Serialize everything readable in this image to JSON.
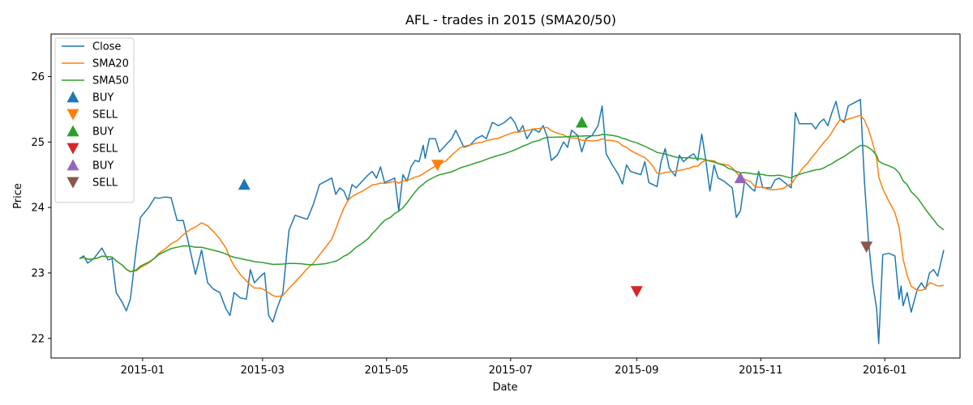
{
  "chart_data": {
    "type": "line",
    "title": "AFL - trades in 2015 (SMA20/50)",
    "xlabel": "Date",
    "ylabel": "Price",
    "xlim": [
      "2014-11-17",
      "2016-02-07"
    ],
    "ylim": [
      21.7,
      26.65
    ],
    "x_ticks": [
      {
        "date": "2015-01-01",
        "label": "2015-01"
      },
      {
        "date": "2015-03-01",
        "label": "2015-03"
      },
      {
        "date": "2015-05-01",
        "label": "2015-05"
      },
      {
        "date": "2015-07-01",
        "label": "2015-07"
      },
      {
        "date": "2015-09-01",
        "label": "2015-09"
      },
      {
        "date": "2015-11-01",
        "label": "2015-11"
      },
      {
        "date": "2016-01-01",
        "label": "2016-01"
      }
    ],
    "y_ticks": [
      22,
      23,
      24,
      25,
      26
    ],
    "grid": false,
    "legend_position": "top-left",
    "series": [
      {
        "name": "Close",
        "color": "#1f77b4",
        "points": [
          [
            "2014-12-01",
            23.22
          ],
          [
            "2014-12-03",
            23.26
          ],
          [
            "2014-12-05",
            23.15
          ],
          [
            "2014-12-08",
            23.22
          ],
          [
            "2014-12-10",
            23.3
          ],
          [
            "2014-12-12",
            23.38
          ],
          [
            "2014-12-15",
            23.2
          ],
          [
            "2014-12-17",
            23.22
          ],
          [
            "2014-12-19",
            22.7
          ],
          [
            "2014-12-22",
            22.55
          ],
          [
            "2014-12-24",
            22.42
          ],
          [
            "2014-12-26",
            22.6
          ],
          [
            "2014-12-29",
            23.4
          ],
          [
            "2014-12-31",
            23.85
          ],
          [
            "2015-01-04",
            24.0
          ],
          [
            "2015-01-07",
            24.15
          ],
          [
            "2015-01-09",
            24.14
          ],
          [
            "2015-01-12",
            24.16
          ],
          [
            "2015-01-15",
            24.15
          ],
          [
            "2015-01-18",
            23.8
          ],
          [
            "2015-01-21",
            23.8
          ],
          [
            "2015-01-24",
            23.4
          ],
          [
            "2015-01-27",
            22.98
          ],
          [
            "2015-01-30",
            23.35
          ],
          [
            "2015-02-02",
            22.85
          ],
          [
            "2015-02-05",
            22.75
          ],
          [
            "2015-02-08",
            22.7
          ],
          [
            "2015-02-11",
            22.45
          ],
          [
            "2015-02-13",
            22.35
          ],
          [
            "2015-02-15",
            22.7
          ],
          [
            "2015-02-18",
            22.62
          ],
          [
            "2015-02-21",
            22.6
          ],
          [
            "2015-02-23",
            23.05
          ],
          [
            "2015-02-25",
            22.85
          ],
          [
            "2015-02-28",
            22.95
          ],
          [
            "2015-03-02",
            23.0
          ],
          [
            "2015-03-04",
            22.35
          ],
          [
            "2015-03-06",
            22.25
          ],
          [
            "2015-03-08",
            22.45
          ],
          [
            "2015-03-11",
            22.7
          ],
          [
            "2015-03-14",
            23.65
          ],
          [
            "2015-03-17",
            23.88
          ],
          [
            "2015-03-20",
            23.85
          ],
          [
            "2015-03-23",
            23.82
          ],
          [
            "2015-03-26",
            24.05
          ],
          [
            "2015-03-29",
            24.35
          ],
          [
            "2015-04-01",
            24.4
          ],
          [
            "2015-04-04",
            24.45
          ],
          [
            "2015-04-06",
            24.2
          ],
          [
            "2015-04-08",
            24.3
          ],
          [
            "2015-04-10",
            24.25
          ],
          [
            "2015-04-12",
            24.1
          ],
          [
            "2015-04-14",
            24.35
          ],
          [
            "2015-04-16",
            24.3
          ],
          [
            "2015-04-19",
            24.4
          ],
          [
            "2015-04-22",
            24.5
          ],
          [
            "2015-04-24",
            24.55
          ],
          [
            "2015-04-26",
            24.45
          ],
          [
            "2015-04-28",
            24.62
          ],
          [
            "2015-04-30",
            24.38
          ],
          [
            "2015-05-03",
            24.42
          ],
          [
            "2015-05-05",
            24.45
          ],
          [
            "2015-05-07",
            23.95
          ],
          [
            "2015-05-09",
            24.5
          ],
          [
            "2015-05-11",
            24.4
          ],
          [
            "2015-05-13",
            24.62
          ],
          [
            "2015-05-15",
            24.72
          ],
          [
            "2015-05-17",
            24.7
          ],
          [
            "2015-05-19",
            24.95
          ],
          [
            "2015-05-20",
            24.75
          ],
          [
            "2015-05-22",
            25.05
          ],
          [
            "2015-05-25",
            25.05
          ],
          [
            "2015-05-27",
            24.85
          ],
          [
            "2015-05-30",
            24.95
          ],
          [
            "2015-06-02",
            25.05
          ],
          [
            "2015-06-04",
            25.18
          ],
          [
            "2015-06-06",
            25.05
          ],
          [
            "2015-06-08",
            24.92
          ],
          [
            "2015-06-11",
            24.95
          ],
          [
            "2015-06-14",
            25.05
          ],
          [
            "2015-06-17",
            25.1
          ],
          [
            "2015-06-19",
            25.05
          ],
          [
            "2015-06-22",
            25.3
          ],
          [
            "2015-06-25",
            25.25
          ],
          [
            "2015-06-28",
            25.3
          ],
          [
            "2015-07-01",
            25.38
          ],
          [
            "2015-07-03",
            25.3
          ],
          [
            "2015-07-05",
            25.15
          ],
          [
            "2015-07-07",
            25.25
          ],
          [
            "2015-07-09",
            25.05
          ],
          [
            "2015-07-12",
            25.2
          ],
          [
            "2015-07-15",
            25.15
          ],
          [
            "2015-07-17",
            25.25
          ],
          [
            "2015-07-19",
            25.08
          ],
          [
            "2015-07-21",
            24.72
          ],
          [
            "2015-07-24",
            24.8
          ],
          [
            "2015-07-27",
            25.0
          ],
          [
            "2015-07-29",
            24.92
          ],
          [
            "2015-07-31",
            25.18
          ],
          [
            "2015-08-03",
            25.1
          ],
          [
            "2015-08-05",
            24.85
          ],
          [
            "2015-08-07",
            25.05
          ],
          [
            "2015-08-10",
            25.1
          ],
          [
            "2015-08-13",
            25.25
          ],
          [
            "2015-08-15",
            25.55
          ],
          [
            "2015-08-17",
            24.82
          ],
          [
            "2015-08-20",
            24.65
          ],
          [
            "2015-08-23",
            24.5
          ],
          [
            "2015-08-25",
            24.36
          ],
          [
            "2015-08-27",
            24.65
          ],
          [
            "2015-08-29",
            24.55
          ],
          [
            "2015-09-01",
            24.52
          ],
          [
            "2015-09-03",
            24.5
          ],
          [
            "2015-09-05",
            24.7
          ],
          [
            "2015-09-07",
            24.38
          ],
          [
            "2015-09-09",
            24.35
          ],
          [
            "2015-09-11",
            24.32
          ],
          [
            "2015-09-13",
            24.7
          ],
          [
            "2015-09-15",
            24.9
          ],
          [
            "2015-09-17",
            24.6
          ],
          [
            "2015-09-20",
            24.48
          ],
          [
            "2015-09-22",
            24.8
          ],
          [
            "2015-09-24",
            24.7
          ],
          [
            "2015-09-27",
            24.78
          ],
          [
            "2015-09-29",
            24.82
          ],
          [
            "2015-10-01",
            24.72
          ],
          [
            "2015-10-03",
            25.12
          ],
          [
            "2015-10-05",
            24.72
          ],
          [
            "2015-10-07",
            24.25
          ],
          [
            "2015-10-09",
            24.65
          ],
          [
            "2015-10-11",
            24.45
          ],
          [
            "2015-10-14",
            24.4
          ],
          [
            "2015-10-16",
            24.35
          ],
          [
            "2015-10-18",
            24.3
          ],
          [
            "2015-10-20",
            23.85
          ],
          [
            "2015-10-22",
            23.95
          ],
          [
            "2015-10-24",
            24.4
          ],
          [
            "2015-10-27",
            24.3
          ],
          [
            "2015-10-29",
            24.25
          ],
          [
            "2015-10-31",
            24.55
          ],
          [
            "2015-11-02",
            24.3
          ],
          [
            "2015-11-04",
            24.3
          ],
          [
            "2015-11-06",
            24.3
          ],
          [
            "2015-11-08",
            24.42
          ],
          [
            "2015-11-10",
            24.45
          ],
          [
            "2015-11-12",
            24.4
          ],
          [
            "2015-11-14",
            24.35
          ],
          [
            "2015-11-16",
            24.3
          ],
          [
            "2015-11-18",
            25.45
          ],
          [
            "2015-11-20",
            25.28
          ],
          [
            "2015-11-22",
            25.28
          ],
          [
            "2015-11-24",
            25.28
          ],
          [
            "2015-11-26",
            25.28
          ],
          [
            "2015-11-28",
            25.2
          ],
          [
            "2015-11-30",
            25.3
          ],
          [
            "2015-12-02",
            25.35
          ],
          [
            "2015-12-04",
            25.25
          ],
          [
            "2015-12-06",
            25.45
          ],
          [
            "2015-12-08",
            25.62
          ],
          [
            "2015-12-10",
            25.35
          ],
          [
            "2015-12-12",
            25.3
          ],
          [
            "2015-12-14",
            25.55
          ],
          [
            "2015-12-17",
            25.6
          ],
          [
            "2015-12-20",
            25.65
          ],
          [
            "2015-12-22",
            24.4
          ],
          [
            "2015-12-24",
            23.5
          ],
          [
            "2015-12-26",
            22.85
          ],
          [
            "2015-12-28",
            22.45
          ],
          [
            "2015-12-29",
            21.92
          ],
          [
            "2015-12-31",
            23.28
          ],
          [
            "2016-01-03",
            23.3
          ],
          [
            "2016-01-06",
            23.26
          ],
          [
            "2016-01-08",
            22.6
          ],
          [
            "2016-01-09",
            22.8
          ],
          [
            "2016-01-10",
            22.5
          ],
          [
            "2016-01-12",
            22.7
          ],
          [
            "2016-01-14",
            22.4
          ],
          [
            "2016-01-17",
            22.75
          ],
          [
            "2016-01-19",
            22.85
          ],
          [
            "2016-01-21",
            22.75
          ],
          [
            "2016-01-23",
            23.0
          ],
          [
            "2016-01-25",
            23.05
          ],
          [
            "2016-01-27",
            22.95
          ],
          [
            "2016-01-30",
            23.35
          ]
        ]
      },
      {
        "name": "SMA20",
        "color": "#ff7f0e",
        "points": []
      },
      {
        "name": "SMA50",
        "color": "#2ca02c",
        "points": []
      }
    ]
  },
  "legend": [
    {
      "label": "Close",
      "kind": "line",
      "color": "#1f77b4"
    },
    {
      "label": "SMA20",
      "kind": "line",
      "color": "#ff7f0e"
    },
    {
      "label": "SMA50",
      "kind": "line",
      "color": "#2ca02c"
    },
    {
      "label": "BUY",
      "kind": "up",
      "color": "#1f77b4"
    },
    {
      "label": "SELL",
      "kind": "down",
      "color": "#ff7f0e"
    },
    {
      "label": "BUY",
      "kind": "up",
      "color": "#2ca02c"
    },
    {
      "label": "SELL",
      "kind": "down",
      "color": "#d62728"
    },
    {
      "label": "BUY",
      "kind": "up",
      "color": "#9467bd"
    },
    {
      "label": "SELL",
      "kind": "down",
      "color": "#8c564b"
    }
  ]
}
